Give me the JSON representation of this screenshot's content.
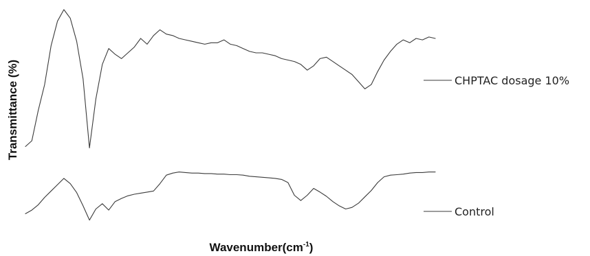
{
  "chart_data": {
    "type": "line",
    "title": "",
    "xlabel": "Wavenumber(cm",
    "xlabel_sup": "-1",
    "xlabel_close": ")",
    "ylabel": "Transmittance (%)",
    "grid": false,
    "legend_placement": "right",
    "series": [
      {
        "name": "CHPTAC dosage 10%",
        "color": "#3a3a3a",
        "values": [
          0.05,
          0.09,
          0.3,
          0.48,
          0.75,
          0.92,
          1.0,
          0.94,
          0.78,
          0.52,
          0.04,
          0.38,
          0.62,
          0.73,
          0.69,
          0.66,
          0.7,
          0.74,
          0.8,
          0.76,
          0.82,
          0.86,
          0.83,
          0.82,
          0.8,
          0.79,
          0.78,
          0.77,
          0.76,
          0.77,
          0.77,
          0.79,
          0.76,
          0.75,
          0.73,
          0.71,
          0.7,
          0.7,
          0.69,
          0.68,
          0.66,
          0.65,
          0.64,
          0.62,
          0.58,
          0.61,
          0.66,
          0.67,
          0.64,
          0.61,
          0.58,
          0.55,
          0.5,
          0.45,
          0.48,
          0.57,
          0.65,
          0.71,
          0.76,
          0.79,
          0.77,
          0.8,
          0.79,
          0.81,
          0.8
        ]
      },
      {
        "name": "Control",
        "color": "#3a3a3a",
        "values": [
          0.15,
          0.22,
          0.32,
          0.46,
          0.58,
          0.7,
          0.82,
          0.72,
          0.55,
          0.3,
          0.03,
          0.24,
          0.34,
          0.22,
          0.38,
          0.44,
          0.49,
          0.52,
          0.54,
          0.56,
          0.58,
          0.72,
          0.88,
          0.92,
          0.94,
          0.93,
          0.92,
          0.92,
          0.91,
          0.91,
          0.9,
          0.9,
          0.89,
          0.89,
          0.88,
          0.86,
          0.85,
          0.84,
          0.83,
          0.82,
          0.8,
          0.74,
          0.5,
          0.4,
          0.5,
          0.63,
          0.56,
          0.48,
          0.38,
          0.3,
          0.24,
          0.27,
          0.35,
          0.47,
          0.59,
          0.74,
          0.85,
          0.88,
          0.89,
          0.9,
          0.92,
          0.93,
          0.93,
          0.94,
          0.94
        ]
      }
    ]
  }
}
